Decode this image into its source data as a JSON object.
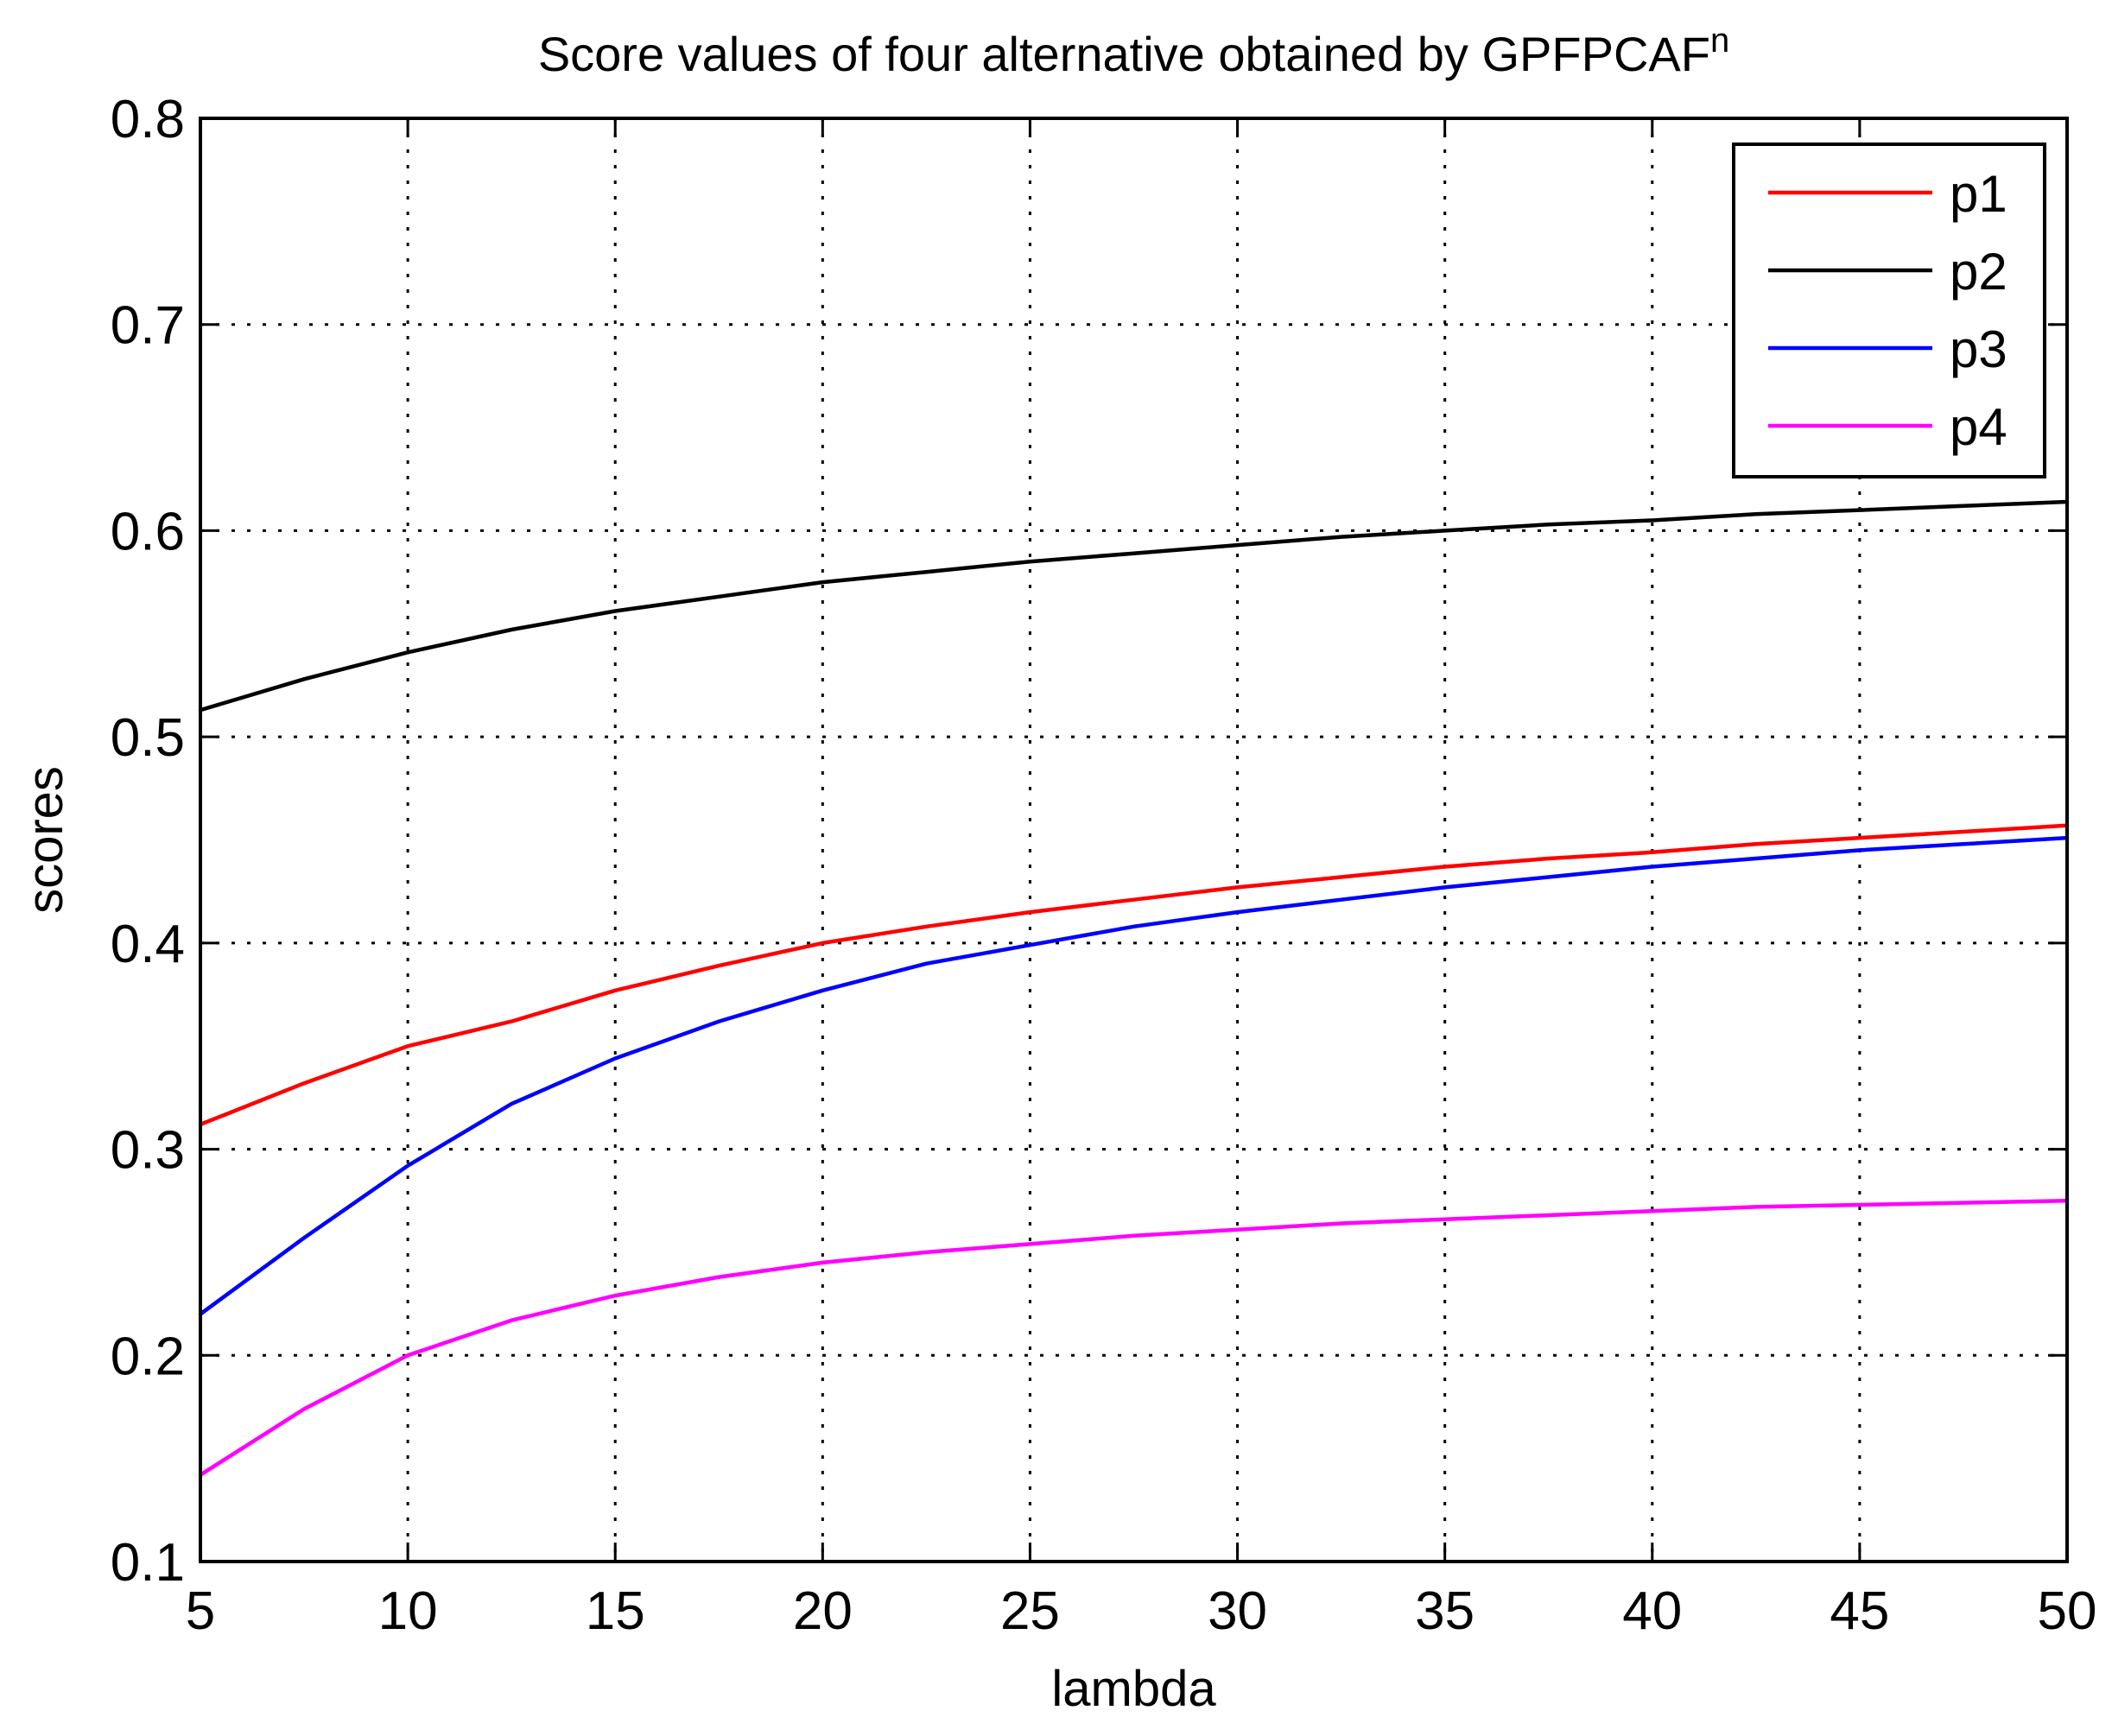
{
  "chart_data": {
    "type": "line",
    "title": "Score values of four alternative obtained by GPFPCAF",
    "title_superscript": "n",
    "xlabel": "lambda",
    "ylabel": "scores",
    "xlim": [
      5,
      50
    ],
    "ylim": [
      0.1,
      0.8
    ],
    "x_ticks": [
      5,
      10,
      15,
      20,
      25,
      30,
      35,
      40,
      45,
      50
    ],
    "y_ticks": [
      0.1,
      0.2,
      0.3,
      0.4,
      0.5,
      0.6,
      0.7,
      0.8
    ],
    "x_tick_labels": [
      "5",
      "10",
      "15",
      "20",
      "25",
      "30",
      "35",
      "40",
      "45",
      "50"
    ],
    "y_tick_labels": [
      "0.1",
      "0.2",
      "0.3",
      "0.4",
      "0.5",
      "0.6",
      "0.7",
      "0.8"
    ],
    "grid": true,
    "legend_position": "top-right",
    "x": [
      5,
      7.5,
      10,
      12.5,
      15,
      17.5,
      20,
      22.5,
      25,
      27.5,
      30,
      32.5,
      35,
      37.5,
      40,
      42.5,
      45,
      47.5,
      50
    ],
    "series": [
      {
        "name": "p1",
        "color": "#ff0000",
        "values": [
          0.312,
          0.332,
          0.35,
          0.362,
          0.377,
          0.389,
          0.4,
          0.408,
          0.415,
          0.421,
          0.427,
          0.432,
          0.437,
          0.441,
          0.444,
          0.448,
          0.451,
          0.454,
          0.457
        ]
      },
      {
        "name": "p2",
        "color": "#000000",
        "values": [
          0.513,
          0.528,
          0.541,
          0.552,
          0.561,
          0.568,
          0.575,
          0.58,
          0.585,
          0.589,
          0.593,
          0.597,
          0.6,
          0.603,
          0.605,
          0.608,
          0.61,
          0.612,
          0.614
        ]
      },
      {
        "name": "p3",
        "color": "#0000ff",
        "values": [
          0.22,
          0.257,
          0.292,
          0.322,
          0.344,
          0.362,
          0.377,
          0.39,
          0.399,
          0.408,
          0.415,
          0.421,
          0.427,
          0.432,
          0.437,
          0.441,
          0.445,
          0.448,
          0.451
        ]
      },
      {
        "name": "p4",
        "color": "#ff00ff",
        "values": [
          0.142,
          0.174,
          0.2,
          0.217,
          0.229,
          0.238,
          0.245,
          0.25,
          0.254,
          0.258,
          0.261,
          0.264,
          0.266,
          0.268,
          0.27,
          0.272,
          0.273,
          0.274,
          0.275
        ]
      }
    ]
  }
}
